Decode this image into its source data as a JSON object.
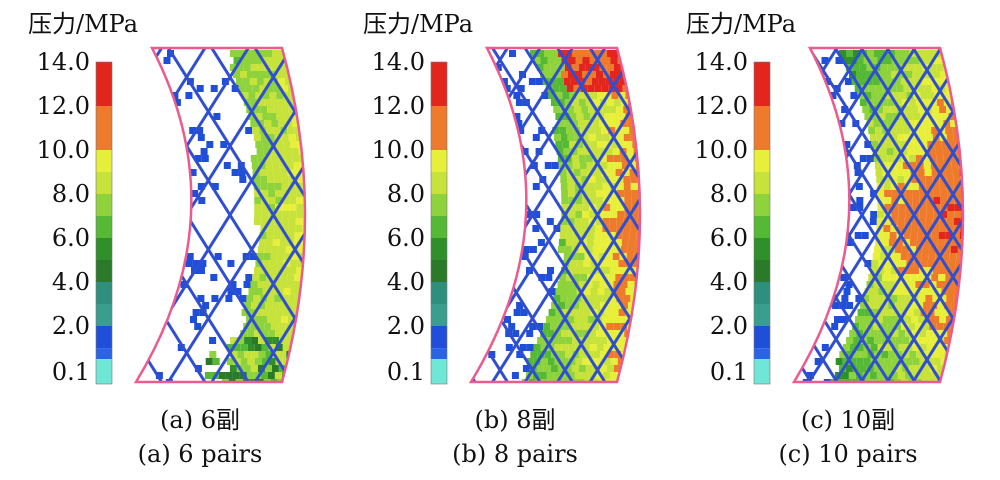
{
  "chart_data": [
    {
      "type": "heatmap",
      "colorbar": {
        "unit_label": "压力/MPa",
        "ticks": [
          "14.0",
          "12.0",
          "10.0",
          "8.0",
          "6.0",
          "4.0",
          "2.0",
          "0.1"
        ],
        "bands": [
          {
            "from": 12.0,
            "to": 14.0,
            "color": "#e3261d"
          },
          {
            "from": 10.0,
            "to": 12.0,
            "color": "#ee7a2c"
          },
          {
            "from": 9.0,
            "to": 10.0,
            "color": "#e8ef3a"
          },
          {
            "from": 8.0,
            "to": 9.0,
            "color": "#c7e23a"
          },
          {
            "from": 7.0,
            "to": 8.0,
            "color": "#8fd33c"
          },
          {
            "from": 6.0,
            "to": 7.0,
            "color": "#56b936"
          },
          {
            "from": 5.0,
            "to": 6.0,
            "color": "#2f8f2a"
          },
          {
            "from": 4.0,
            "to": 5.0,
            "color": "#2a7a2a"
          },
          {
            "from": 3.0,
            "to": 4.0,
            "color": "#2f8f7e"
          },
          {
            "from": 2.0,
            "to": 3.0,
            "color": "#3a9e8e"
          },
          {
            "from": 1.0,
            "to": 2.0,
            "color": "#1f4fd8"
          },
          {
            "from": 0.5,
            "to": 1.0,
            "color": "#2a63e6"
          },
          {
            "from": 0.1,
            "to": 0.5,
            "color": "#6fe7d7"
          }
        ]
      },
      "caption_cn": "(a) 6副",
      "caption_en": "(a) 6 pairs",
      "pattern": {
        "level": "medium",
        "grooves": 6
      }
    },
    {
      "type": "heatmap",
      "colorbar": {
        "unit_label": "压力/MPa",
        "ticks": [
          "14.0",
          "12.0",
          "10.0",
          "8.0",
          "6.0",
          "4.0",
          "2.0",
          "0.1"
        ],
        "bands": [
          {
            "from": 12.0,
            "to": 14.0,
            "color": "#e3261d"
          },
          {
            "from": 10.0,
            "to": 12.0,
            "color": "#ee7a2c"
          },
          {
            "from": 9.0,
            "to": 10.0,
            "color": "#e8ef3a"
          },
          {
            "from": 8.0,
            "to": 9.0,
            "color": "#c7e23a"
          },
          {
            "from": 7.0,
            "to": 8.0,
            "color": "#8fd33c"
          },
          {
            "from": 6.0,
            "to": 7.0,
            "color": "#56b936"
          },
          {
            "from": 5.0,
            "to": 6.0,
            "color": "#2f8f2a"
          },
          {
            "from": 4.0,
            "to": 5.0,
            "color": "#2a7a2a"
          },
          {
            "from": 3.0,
            "to": 4.0,
            "color": "#2f8f7e"
          },
          {
            "from": 2.0,
            "to": 3.0,
            "color": "#3a9e8e"
          },
          {
            "from": 1.0,
            "to": 2.0,
            "color": "#1f4fd8"
          },
          {
            "from": 0.5,
            "to": 1.0,
            "color": "#2a63e6"
          },
          {
            "from": 0.1,
            "to": 0.5,
            "color": "#6fe7d7"
          }
        ]
      },
      "caption_cn": "(b) 8副",
      "caption_en": "(b) 8 pairs",
      "pattern": {
        "level": "high",
        "grooves": 8
      }
    },
    {
      "type": "heatmap",
      "colorbar": {
        "unit_label": "压力/MPa",
        "ticks": [
          "14.0",
          "12.0",
          "10.0",
          "8.0",
          "6.0",
          "4.0",
          "2.0",
          "0.1"
        ],
        "bands": [
          {
            "from": 12.0,
            "to": 14.0,
            "color": "#e3261d"
          },
          {
            "from": 10.0,
            "to": 12.0,
            "color": "#ee7a2c"
          },
          {
            "from": 9.0,
            "to": 10.0,
            "color": "#e8ef3a"
          },
          {
            "from": 8.0,
            "to": 9.0,
            "color": "#c7e23a"
          },
          {
            "from": 7.0,
            "to": 8.0,
            "color": "#8fd33c"
          },
          {
            "from": 6.0,
            "to": 7.0,
            "color": "#56b936"
          },
          {
            "from": 5.0,
            "to": 6.0,
            "color": "#2f8f2a"
          },
          {
            "from": 4.0,
            "to": 5.0,
            "color": "#2a7a2a"
          },
          {
            "from": 3.0,
            "to": 4.0,
            "color": "#2f8f7e"
          },
          {
            "from": 2.0,
            "to": 3.0,
            "color": "#3a9e8e"
          },
          {
            "from": 1.0,
            "to": 2.0,
            "color": "#1f4fd8"
          },
          {
            "from": 0.5,
            "to": 1.0,
            "color": "#2a63e6"
          },
          {
            "from": 0.1,
            "to": 0.5,
            "color": "#6fe7d7"
          }
        ]
      },
      "caption_cn": "(c) 10副",
      "caption_en": "(c) 10 pairs",
      "pattern": {
        "level": "very-high",
        "grooves": 10
      }
    }
  ],
  "colors": {
    "outline": "#ea5b8f",
    "groove": "#2f4fd0",
    "text": "#111111"
  }
}
